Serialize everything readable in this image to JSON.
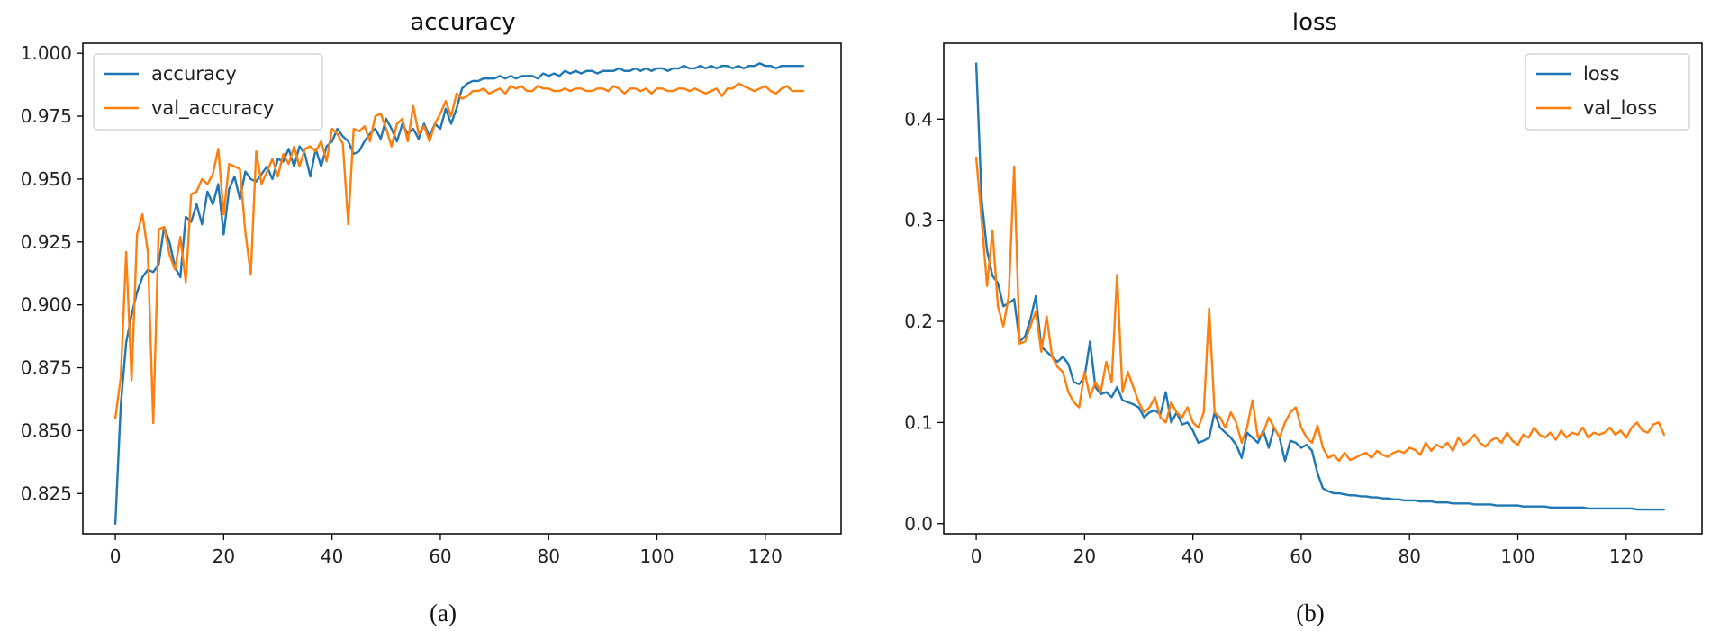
{
  "chart_data": [
    {
      "type": "line",
      "title": "accuracy",
      "caption": "(a)",
      "xlabel": "",
      "ylabel": "",
      "xlim": [
        -6,
        134
      ],
      "ylim": [
        0.809,
        1.004
      ],
      "xticks": [
        0,
        20,
        40,
        60,
        80,
        100,
        120
      ],
      "yticks": [
        0.825,
        0.85,
        0.875,
        0.9,
        0.925,
        0.95,
        0.975,
        1.0
      ],
      "ytick_labels": [
        "0.825",
        "0.850",
        "0.875",
        "0.900",
        "0.925",
        "0.950",
        "0.975",
        "1.000"
      ],
      "legend_position": "top-left",
      "grid": false,
      "series": [
        {
          "name": "accuracy",
          "color": "#1f77b4",
          "values": [
            0.813,
            0.86,
            0.885,
            0.896,
            0.905,
            0.911,
            0.914,
            0.913,
            0.916,
            0.931,
            0.925,
            0.915,
            0.911,
            0.935,
            0.933,
            0.94,
            0.932,
            0.945,
            0.94,
            0.948,
            0.928,
            0.946,
            0.951,
            0.942,
            0.953,
            0.95,
            0.949,
            0.952,
            0.955,
            0.95,
            0.958,
            0.957,
            0.962,
            0.955,
            0.963,
            0.96,
            0.951,
            0.962,
            0.955,
            0.963,
            0.965,
            0.97,
            0.967,
            0.965,
            0.96,
            0.961,
            0.965,
            0.968,
            0.97,
            0.966,
            0.974,
            0.97,
            0.965,
            0.972,
            0.968,
            0.97,
            0.966,
            0.972,
            0.967,
            0.972,
            0.97,
            0.978,
            0.972,
            0.978,
            0.986,
            0.988,
            0.989,
            0.989,
            0.99,
            0.99,
            0.99,
            0.991,
            0.99,
            0.991,
            0.99,
            0.991,
            0.991,
            0.991,
            0.99,
            0.992,
            0.991,
            0.992,
            0.991,
            0.993,
            0.992,
            0.993,
            0.992,
            0.993,
            0.993,
            0.992,
            0.993,
            0.993,
            0.993,
            0.994,
            0.993,
            0.993,
            0.994,
            0.993,
            0.994,
            0.993,
            0.994,
            0.994,
            0.993,
            0.994,
            0.994,
            0.995,
            0.994,
            0.994,
            0.995,
            0.994,
            0.995,
            0.994,
            0.995,
            0.995,
            0.994,
            0.995,
            0.994,
            0.995,
            0.995,
            0.996,
            0.995,
            0.995,
            0.994,
            0.995,
            0.995,
            0.995,
            0.995,
            0.995
          ]
        },
        {
          "name": "val_accuracy",
          "color": "#ff7f0e",
          "values": [
            0.855,
            0.871,
            0.921,
            0.87,
            0.928,
            0.936,
            0.921,
            0.853,
            0.93,
            0.931,
            0.92,
            0.914,
            0.927,
            0.909,
            0.944,
            0.945,
            0.95,
            0.948,
            0.952,
            0.962,
            0.936,
            0.956,
            0.955,
            0.954,
            0.929,
            0.912,
            0.961,
            0.948,
            0.953,
            0.958,
            0.951,
            0.96,
            0.956,
            0.963,
            0.955,
            0.962,
            0.963,
            0.961,
            0.965,
            0.957,
            0.97,
            0.968,
            0.964,
            0.932,
            0.97,
            0.969,
            0.971,
            0.965,
            0.975,
            0.976,
            0.97,
            0.963,
            0.972,
            0.974,
            0.965,
            0.979,
            0.968,
            0.971,
            0.965,
            0.972,
            0.976,
            0.981,
            0.975,
            0.984,
            0.982,
            0.983,
            0.985,
            0.985,
            0.986,
            0.984,
            0.985,
            0.986,
            0.984,
            0.987,
            0.986,
            0.987,
            0.985,
            0.985,
            0.987,
            0.986,
            0.986,
            0.985,
            0.985,
            0.986,
            0.985,
            0.986,
            0.986,
            0.985,
            0.985,
            0.986,
            0.986,
            0.985,
            0.987,
            0.986,
            0.984,
            0.986,
            0.986,
            0.985,
            0.986,
            0.984,
            0.986,
            0.986,
            0.985,
            0.985,
            0.986,
            0.986,
            0.985,
            0.986,
            0.985,
            0.984,
            0.985,
            0.986,
            0.983,
            0.986,
            0.986,
            0.988,
            0.987,
            0.986,
            0.985,
            0.986,
            0.987,
            0.985,
            0.984,
            0.986,
            0.987,
            0.985,
            0.985,
            0.985
          ]
        }
      ]
    },
    {
      "type": "line",
      "title": "loss",
      "caption": "(b)",
      "xlabel": "",
      "ylabel": "",
      "xlim": [
        -6,
        134
      ],
      "ylim": [
        -0.01,
        0.475
      ],
      "xticks": [
        0,
        20,
        40,
        60,
        80,
        100,
        120
      ],
      "yticks": [
        0.0,
        0.1,
        0.2,
        0.3,
        0.4
      ],
      "ytick_labels": [
        "0.0",
        "0.1",
        "0.2",
        "0.3",
        "0.4"
      ],
      "legend_position": "top-right",
      "grid": false,
      "series": [
        {
          "name": "loss",
          "color": "#1f77b4",
          "values": [
            0.455,
            0.32,
            0.27,
            0.245,
            0.238,
            0.215,
            0.218,
            0.222,
            0.18,
            0.185,
            0.202,
            0.225,
            0.175,
            0.17,
            0.165,
            0.16,
            0.165,
            0.158,
            0.14,
            0.138,
            0.145,
            0.18,
            0.135,
            0.128,
            0.13,
            0.125,
            0.135,
            0.122,
            0.12,
            0.118,
            0.115,
            0.105,
            0.11,
            0.112,
            0.108,
            0.13,
            0.1,
            0.11,
            0.098,
            0.1,
            0.092,
            0.08,
            0.082,
            0.085,
            0.11,
            0.095,
            0.09,
            0.085,
            0.078,
            0.065,
            0.09,
            0.085,
            0.08,
            0.092,
            0.075,
            0.095,
            0.085,
            0.062,
            0.082,
            0.08,
            0.075,
            0.078,
            0.072,
            0.05,
            0.035,
            0.032,
            0.03,
            0.03,
            0.029,
            0.028,
            0.028,
            0.027,
            0.027,
            0.026,
            0.026,
            0.025,
            0.025,
            0.024,
            0.024,
            0.023,
            0.023,
            0.023,
            0.022,
            0.022,
            0.022,
            0.021,
            0.021,
            0.021,
            0.02,
            0.02,
            0.02,
            0.02,
            0.019,
            0.019,
            0.019,
            0.019,
            0.018,
            0.018,
            0.018,
            0.018,
            0.018,
            0.017,
            0.017,
            0.017,
            0.017,
            0.017,
            0.016,
            0.016,
            0.016,
            0.016,
            0.016,
            0.016,
            0.016,
            0.015,
            0.015,
            0.015,
            0.015,
            0.015,
            0.015,
            0.015,
            0.015,
            0.015,
            0.014,
            0.014,
            0.014,
            0.014,
            0.014,
            0.014
          ]
        },
        {
          "name": "val_loss",
          "color": "#ff7f0e",
          "values": [
            0.362,
            0.3,
            0.235,
            0.29,
            0.215,
            0.195,
            0.225,
            0.353,
            0.178,
            0.18,
            0.195,
            0.21,
            0.17,
            0.205,
            0.165,
            0.155,
            0.15,
            0.13,
            0.12,
            0.115,
            0.15,
            0.125,
            0.14,
            0.13,
            0.16,
            0.14,
            0.246,
            0.13,
            0.15,
            0.135,
            0.12,
            0.11,
            0.115,
            0.125,
            0.105,
            0.1,
            0.12,
            0.11,
            0.105,
            0.115,
            0.1,
            0.095,
            0.11,
            0.213,
            0.11,
            0.105,
            0.095,
            0.11,
            0.1,
            0.08,
            0.095,
            0.122,
            0.085,
            0.09,
            0.105,
            0.095,
            0.085,
            0.1,
            0.11,
            0.115,
            0.095,
            0.085,
            0.08,
            0.097,
            0.075,
            0.065,
            0.068,
            0.062,
            0.07,
            0.063,
            0.065,
            0.068,
            0.07,
            0.065,
            0.072,
            0.068,
            0.066,
            0.07,
            0.072,
            0.07,
            0.075,
            0.073,
            0.068,
            0.08,
            0.072,
            0.078,
            0.075,
            0.08,
            0.072,
            0.085,
            0.078,
            0.082,
            0.088,
            0.08,
            0.076,
            0.082,
            0.085,
            0.08,
            0.09,
            0.082,
            0.078,
            0.088,
            0.085,
            0.095,
            0.088,
            0.085,
            0.09,
            0.083,
            0.092,
            0.085,
            0.09,
            0.088,
            0.095,
            0.085,
            0.09,
            0.088,
            0.09,
            0.095,
            0.088,
            0.092,
            0.085,
            0.095,
            0.1,
            0.092,
            0.09,
            0.098,
            0.1,
            0.088
          ]
        }
      ]
    }
  ]
}
